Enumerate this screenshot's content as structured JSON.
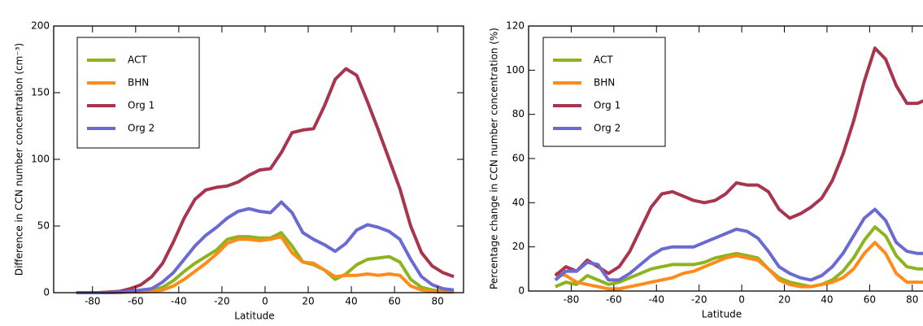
{
  "chart_data": [
    {
      "type": "line",
      "xlabel": "Latitude",
      "ylabel": "Difference in CCN number concentration (cm⁻³)",
      "xlim": [
        -98,
        92
      ],
      "ylim": [
        0,
        200
      ],
      "xticks": [
        -80,
        -60,
        -40,
        -20,
        0,
        20,
        40,
        60,
        80
      ],
      "yticks": [
        0,
        50,
        100,
        150,
        200
      ],
      "legend": "upper left",
      "x": [
        -87.5,
        -82.5,
        -77.5,
        -72.5,
        -67.5,
        -62.5,
        -57.5,
        -52.5,
        -47.5,
        -42.5,
        -37.5,
        -32.5,
        -27.5,
        -22.5,
        -17.5,
        -12.5,
        -7.5,
        -2.5,
        2.5,
        7.5,
        12.5,
        17.5,
        22.5,
        27.5,
        32.5,
        37.5,
        42.5,
        47.5,
        52.5,
        57.5,
        62.5,
        67.5,
        72.5,
        77.5,
        82.5,
        87.5
      ],
      "series": [
        {
          "name": "ACT",
          "color": "#8db31f",
          "values": [
            0,
            0,
            0,
            0,
            0.5,
            0.5,
            1,
            2,
            4,
            9,
            16,
            22,
            27,
            32,
            40,
            42,
            42,
            41,
            41,
            45,
            35,
            23,
            21,
            17,
            10,
            14,
            21,
            25,
            26,
            27,
            23,
            10,
            4,
            2,
            1,
            1
          ]
        },
        {
          "name": "BHN",
          "color": "#ff8c1a",
          "values": [
            0,
            0,
            0,
            0,
            0,
            0.5,
            0.5,
            1,
            2,
            5,
            10,
            16,
            22,
            29,
            37,
            40,
            40,
            39,
            40,
            42,
            30,
            23,
            22,
            17,
            12,
            13,
            13,
            14,
            13,
            14,
            13,
            5,
            2,
            1,
            0.5,
            0.5
          ]
        },
        {
          "name": "Org 1",
          "color": "#a8344e",
          "values": [
            0,
            0,
            0,
            0.5,
            1,
            3,
            6,
            12,
            22,
            38,
            56,
            70,
            77,
            79,
            80,
            83,
            88,
            92,
            93,
            105,
            120,
            122,
            123,
            140,
            160,
            168,
            163,
            143,
            122,
            100,
            78,
            50,
            30,
            20,
            15,
            12
          ]
        },
        {
          "name": "Org 2",
          "color": "#6a6ad4",
          "values": [
            0,
            0,
            0,
            0,
            0.5,
            1,
            2,
            3,
            8,
            15,
            25,
            35,
            43,
            49,
            56,
            61,
            63,
            61,
            60,
            68,
            60,
            45,
            40,
            36,
            31,
            37,
            47,
            51,
            49,
            46,
            40,
            25,
            12,
            6,
            3,
            2
          ]
        }
      ]
    },
    {
      "type": "line",
      "xlabel": "Latitude",
      "ylabel": "Percentage change in CCN number concentration (%)",
      "xlim": [
        -100,
        90
      ],
      "ylim": [
        0,
        120
      ],
      "xticks": [
        -80,
        -60,
        -40,
        -20,
        0,
        20,
        40,
        60,
        80
      ],
      "yticks": [
        0,
        20,
        40,
        60,
        80,
        100,
        120
      ],
      "legend": "upper left",
      "x": [
        -87.5,
        -82.5,
        -77.5,
        -72.5,
        -67.5,
        -62.5,
        -57.5,
        -52.5,
        -47.5,
        -42.5,
        -37.5,
        -32.5,
        -27.5,
        -22.5,
        -17.5,
        -12.5,
        -7.5,
        -2.5,
        2.5,
        7.5,
        12.5,
        17.5,
        22.5,
        27.5,
        32.5,
        37.5,
        42.5,
        47.5,
        52.5,
        57.5,
        62.5,
        67.5,
        72.5,
        77.5,
        82.5,
        87.5
      ],
      "series": [
        {
          "name": "ACT",
          "color": "#8db31f",
          "values": [
            2,
            4,
            3,
            7,
            5,
            3,
            4,
            6,
            8,
            10,
            11,
            12,
            12,
            12,
            13,
            15,
            16,
            17,
            16,
            15,
            10,
            6,
            4,
            3,
            2,
            3,
            5,
            9,
            15,
            23,
            29,
            25,
            16,
            11,
            10,
            10
          ]
        },
        {
          "name": "BHN",
          "color": "#ff8c1a",
          "values": [
            8,
            7,
            4,
            3,
            2,
            1,
            1,
            2,
            3,
            4,
            5,
            6,
            8,
            9,
            11,
            13,
            15,
            16,
            15,
            14,
            10,
            5,
            3,
            2,
            2,
            3,
            4,
            6,
            10,
            17,
            22,
            17,
            8,
            4,
            4,
            4
          ]
        },
        {
          "name": "Org 1",
          "color": "#a8344e",
          "values": [
            7,
            11,
            9,
            14,
            11,
            8,
            11,
            18,
            28,
            38,
            44,
            45,
            43,
            41,
            40,
            41,
            44,
            49,
            48,
            48,
            45,
            37,
            33,
            35,
            38,
            42,
            50,
            62,
            77,
            95,
            110,
            105,
            93,
            85,
            85,
            87
          ]
        },
        {
          "name": "Org 2",
          "color": "#6a6ad4",
          "values": [
            5,
            9,
            9,
            13,
            12,
            5,
            5,
            8,
            12,
            16,
            19,
            20,
            20,
            20,
            22,
            24,
            26,
            28,
            27,
            24,
            18,
            11,
            8,
            6,
            5,
            7,
            11,
            17,
            25,
            33,
            37,
            32,
            22,
            18,
            17,
            17
          ]
        }
      ]
    }
  ]
}
